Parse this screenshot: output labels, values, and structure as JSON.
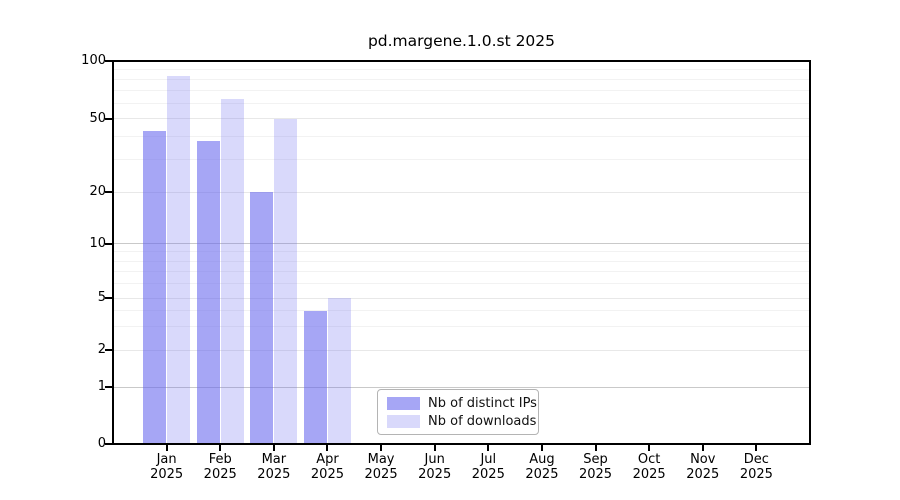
{
  "chart_data": {
    "type": "bar",
    "title": "pd.margene.1.0.st 2025",
    "categories": [
      "Jan",
      "Feb",
      "Mar",
      "Apr",
      "May",
      "Jun",
      "Jul",
      "Aug",
      "Sep",
      "Oct",
      "Nov",
      "Dec"
    ],
    "year_label": "2025",
    "series": [
      {
        "name": "Nb of distinct IPs",
        "values": [
          43,
          38,
          20,
          4,
          0,
          0,
          0,
          0,
          0,
          0,
          0,
          0
        ],
        "base_color": "#6666ee",
        "alpha": 0.58
      },
      {
        "name": "Nb of downloads",
        "values": [
          83,
          63,
          50,
          5,
          0,
          0,
          0,
          0,
          0,
          0,
          0,
          0
        ],
        "base_color": "#6666ee",
        "alpha": 0.25
      }
    ],
    "yticks": [
      0,
      1,
      2,
      5,
      10,
      20,
      50,
      100
    ],
    "ylim": [
      0,
      100
    ],
    "yscale": "symlog",
    "xlabel": "",
    "ylabel": "",
    "grid": true,
    "legend_position": "lower-center",
    "colors": {
      "bar_distinct_ips": "#a6a6f4",
      "bar_downloads": "#d9d9f9",
      "grid_major": "#c9c9c9",
      "grid_mid": "#e8e8e8",
      "grid_minor": "#f2f2f2",
      "axis": "#000000"
    }
  }
}
